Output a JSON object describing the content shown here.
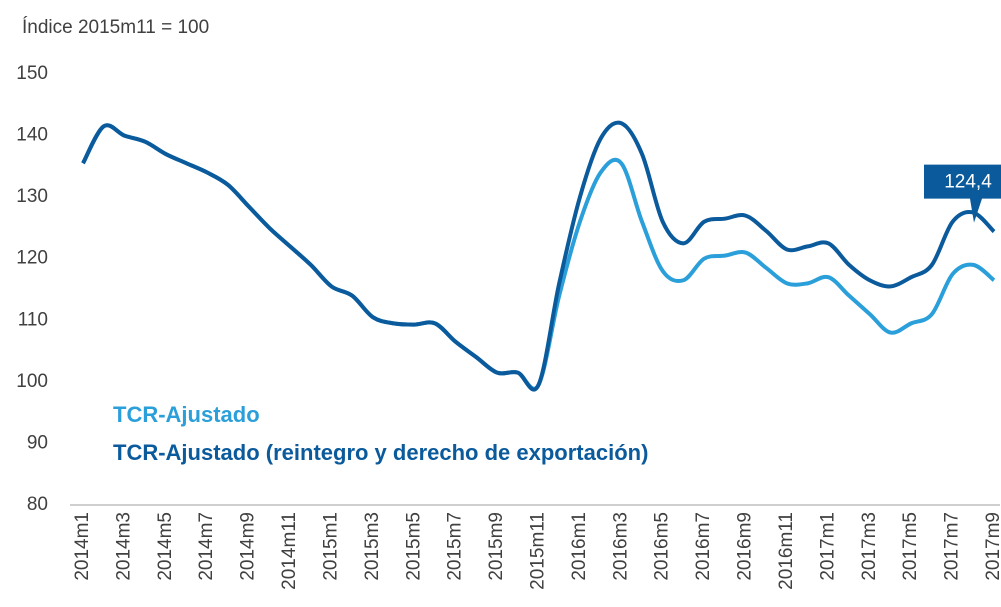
{
  "chart_data": {
    "type": "line",
    "y_axis_label": "Índice 2015m11 = 100",
    "categories": [
      "2014m1",
      null,
      "2014m3",
      null,
      "2014m5",
      null,
      "2014m7",
      null,
      "2014m9",
      null,
      "2014m11",
      null,
      "2015m1",
      null,
      "2015m3",
      null,
      "2015m5",
      null,
      "2015m7",
      null,
      "2015m9",
      null,
      "2015m11",
      null,
      "2016m1",
      null,
      "2016m3",
      null,
      "2016m5",
      null,
      "2016m7",
      null,
      "2016m9",
      null,
      "2016m11",
      null,
      "2017m1",
      null,
      "2017m3",
      null,
      "2017m5",
      null,
      "2017m7",
      null,
      "2017m9"
    ],
    "series": [
      {
        "name": "TCR-Ajustado",
        "color": "#2b9fd9",
        "values": [
          135.5,
          141.5,
          140,
          139,
          137,
          135.5,
          134,
          132,
          128.5,
          125,
          122,
          119,
          115.5,
          114,
          110.5,
          109.5,
          109.3,
          109.5,
          106.5,
          104,
          101.5,
          101.5,
          99.5,
          114,
          126,
          134,
          135.5,
          126,
          118,
          116.5,
          120,
          120.5,
          121,
          118.5,
          116,
          116,
          117,
          114,
          111,
          108,
          109.5,
          111,
          117.5,
          119,
          116.5
        ]
      },
      {
        "name": "TCR-Ajustado (reintegro y derecho de exportación)",
        "color": "#0a5a9c",
        "values": [
          135.5,
          141.5,
          140,
          139,
          137,
          135.5,
          134,
          132,
          128.5,
          125,
          122,
          119,
          115.5,
          114,
          110.5,
          109.5,
          109.3,
          109.5,
          106.5,
          104,
          101.5,
          101.5,
          99.5,
          116,
          130,
          139.5,
          142,
          137,
          126,
          122.5,
          126,
          126.5,
          127,
          124.5,
          121.5,
          122,
          122.5,
          119,
          116.5,
          115.5,
          117,
          119,
          126,
          127.5,
          124.4
        ],
        "value_labels": [
          null,
          null,
          null,
          null,
          null,
          null,
          null,
          null,
          null,
          null,
          null,
          null,
          null,
          null,
          null,
          null,
          null,
          null,
          null,
          null,
          null,
          null,
          null,
          null,
          null,
          null,
          null,
          null,
          null,
          null,
          null,
          null,
          null,
          null,
          null,
          null,
          null,
          null,
          null,
          null,
          null,
          null,
          null,
          null,
          "124,4"
        ]
      }
    ],
    "ylim": [
      80,
      150
    ],
    "yticks": [
      80,
      90,
      100,
      110,
      120,
      130,
      140,
      150
    ],
    "grid": false
  }
}
